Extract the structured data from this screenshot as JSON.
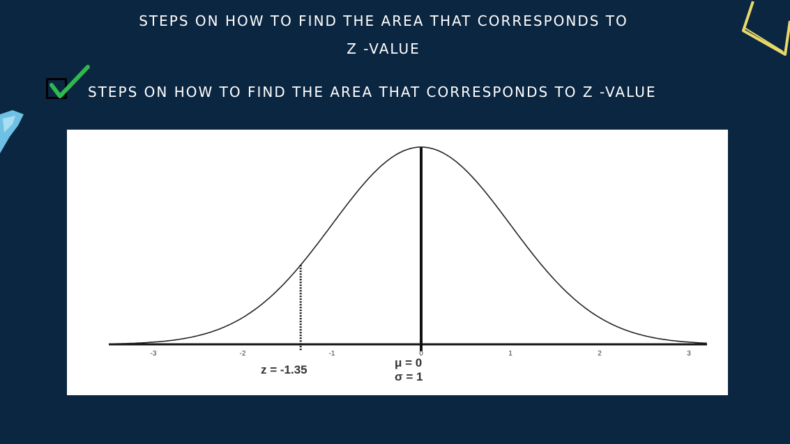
{
  "slide": {
    "title_line1": "STEPS ON HOW TO FIND THE AREA THAT CORRESPONDS TO",
    "title_line2": "Z -VALUE",
    "bullet": "STEPS ON HOW TO FIND THE AREA THAT CORRESPONDS TO Z -VALUE",
    "bullet_icon": "checkmark-icon",
    "colors": {
      "background": "#0b2641",
      "text": "#ffffff",
      "check": "#2fb84d",
      "deco_left": "#6ec1e4",
      "deco_right": "#e8d96a"
    }
  },
  "figure": {
    "tick_labels": [
      "-3",
      "-2",
      "-1",
      "0",
      "1",
      "2",
      "3"
    ],
    "z_label": "z = -1.35",
    "mu_label": "μ = 0",
    "sigma_label": "σ = 1"
  },
  "chart_data": {
    "type": "line",
    "series": [
      {
        "name": "",
        "function": "standard normal density"
      }
    ],
    "x_ticks": [
      -3,
      -2,
      -1,
      0,
      1,
      2,
      3
    ],
    "xlim": [
      -3.5,
      3.2
    ],
    "markers": [
      {
        "x": -1.35,
        "style": "dotted"
      },
      {
        "x": 0,
        "style": "solid"
      }
    ],
    "annotations": [
      "z = -1.35",
      "μ = 0",
      "σ = 1"
    ]
  }
}
